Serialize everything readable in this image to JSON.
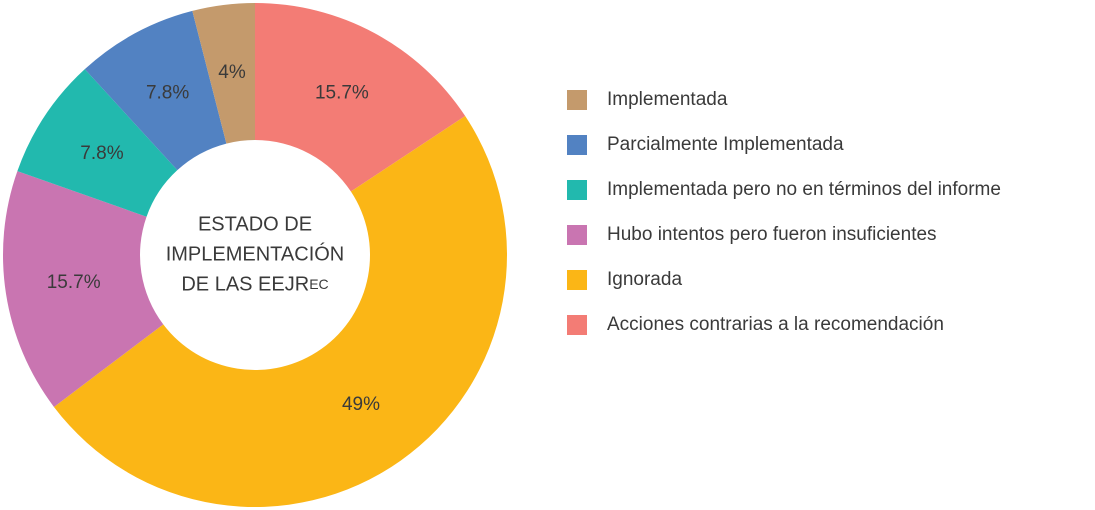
{
  "chart_data": {
    "type": "donut",
    "center_label": [
      "ESTADO DE",
      "IMPLEMENTACIÓN",
      "DE LAS EEJR"
    ],
    "center_label_suffix": "EC",
    "categories": [
      "Implementada",
      "Parcialmente Implementada",
      "Implementada pero no en términos del informe",
      "Hubo intentos pero fueron insuficientes",
      "Ignorada",
      "Acciones contrarias a la recomendación"
    ],
    "values": [
      4,
      7.8,
      7.8,
      15.7,
      49,
      15.7
    ],
    "value_labels": [
      "4%",
      "7.8%",
      "7.8%",
      "15.7%",
      "49%",
      "15.7%"
    ],
    "colors": [
      "#c49a6c",
      "#5282c2",
      "#22b9ae",
      "#c975b1",
      "#fbb616",
      "#f37c75"
    ],
    "legend": "right"
  }
}
